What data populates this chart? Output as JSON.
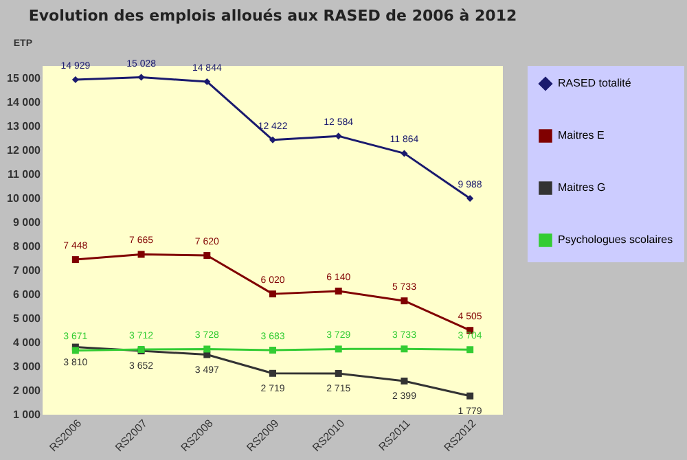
{
  "chart_data": {
    "type": "line",
    "title": "Evolution des emplois alloués aux RASED de 2006 à 2012",
    "ylabel": "ETP",
    "categories": [
      "RS2006",
      "RS2007",
      "RS2008",
      "RS2009",
      "RS2010",
      "RS2011",
      "RS2012"
    ],
    "series": [
      {
        "name": "RASED totalité",
        "color": "#1a1a6e",
        "marker": "diamond",
        "values": [
          14929,
          15028,
          14844,
          12422,
          12584,
          11864,
          9988
        ],
        "value_labels": [
          "14 929",
          "15 028",
          "14 844",
          "12 422",
          "12 584",
          "11 864",
          "9 988"
        ]
      },
      {
        "name": "Maitres E",
        "color": "#800000",
        "marker": "square",
        "values": [
          7448,
          7665,
          7620,
          6020,
          6140,
          5733,
          4505
        ],
        "value_labels": [
          "7 448",
          "7 665",
          "7 620",
          "6 020",
          "6 140",
          "5 733",
          "4 505"
        ]
      },
      {
        "name": "Maitres G",
        "color": "#333333",
        "marker": "square",
        "values": [
          3810,
          3652,
          3497,
          2719,
          2715,
          2399,
          1779
        ],
        "value_labels": [
          "3 810",
          "3 652",
          "3 497",
          "2 719",
          "2 715",
          "2 399",
          "1 779"
        ]
      },
      {
        "name": "Psychologues scolaires",
        "color": "#33cc33",
        "marker": "square",
        "values": [
          3671,
          3712,
          3728,
          3683,
          3729,
          3733,
          3704
        ],
        "value_labels": [
          "3 671",
          "3 712",
          "3 728",
          "3 683",
          "3 729",
          "3 733",
          "3 704"
        ]
      }
    ],
    "ylim": [
      1000,
      15500
    ],
    "yticks": [
      {
        "value": 1000,
        "label": "1 000"
      },
      {
        "value": 2000,
        "label": "2 000"
      },
      {
        "value": 3000,
        "label": "3 000"
      },
      {
        "value": 4000,
        "label": "4 000"
      },
      {
        "value": 5000,
        "label": "5 000"
      },
      {
        "value": 6000,
        "label": "6 000"
      },
      {
        "value": 7000,
        "label": "7 000"
      },
      {
        "value": 8000,
        "label": "8 000"
      },
      {
        "value": 9000,
        "label": "9 000"
      },
      {
        "value": 10000,
        "label": "10 000"
      },
      {
        "value": 11000,
        "label": "11 000"
      },
      {
        "value": 12000,
        "label": "12 000"
      },
      {
        "value": 13000,
        "label": "13 000"
      },
      {
        "value": 14000,
        "label": "14 000"
      },
      {
        "value": 15000,
        "label": "15 000"
      }
    ],
    "grid": false,
    "legend": "right"
  }
}
